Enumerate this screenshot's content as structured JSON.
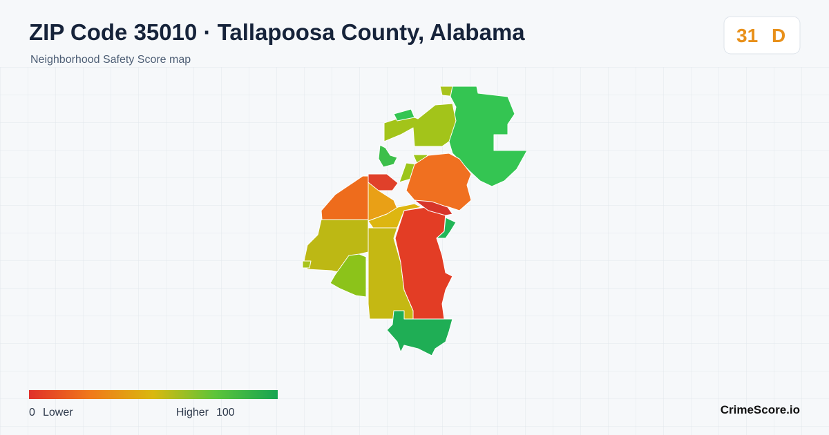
{
  "header": {
    "title": "ZIP Code 35010 · Tallapoosa County, Alabama",
    "subtitle": "Neighborhood Safety Score map"
  },
  "badge": {
    "score": 31,
    "grade": "D"
  },
  "legend": {
    "min": 0,
    "low_label": "Lower",
    "high_label": "Higher",
    "max": 100
  },
  "brand": "CrimeScore.io"
}
